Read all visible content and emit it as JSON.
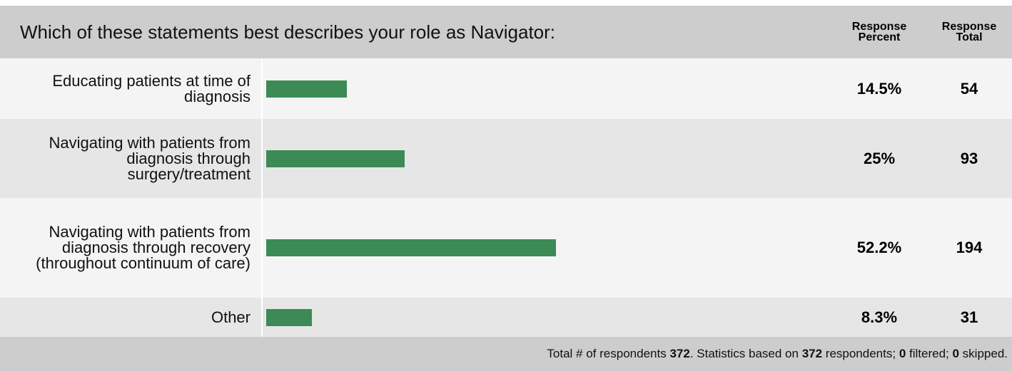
{
  "question": "Which of these statements best describes your role as Navigator:",
  "headers": {
    "percent": "Response Percent",
    "total": "Response Total"
  },
  "rows": [
    {
      "label": "Educating patients at time of diagnosis",
      "percent": 14.5,
      "percent_label": "14.5%",
      "total": 54
    },
    {
      "label": "Navigating with patients from diagnosis through surgery/treatment",
      "percent": 25,
      "percent_label": "25%",
      "total": 93
    },
    {
      "label": "Navigating with patients from diagnosis through recovery (throughout continuum of care)",
      "percent": 52.2,
      "percent_label": "52.2%",
      "total": 194
    },
    {
      "label": "Other",
      "percent": 8.3,
      "percent_label": "8.3%",
      "total": 31
    }
  ],
  "bar_color": "#3c8a55",
  "footer": {
    "respondents_text": "Total # of respondents ",
    "respondents": 372,
    "based_on_text": ". Statistics based on ",
    "based_on": 372,
    "respondents_word": " respondents; ",
    "filtered": 0,
    "filtered_word": " filtered; ",
    "skipped": 0,
    "skipped_word": " skipped."
  }
}
